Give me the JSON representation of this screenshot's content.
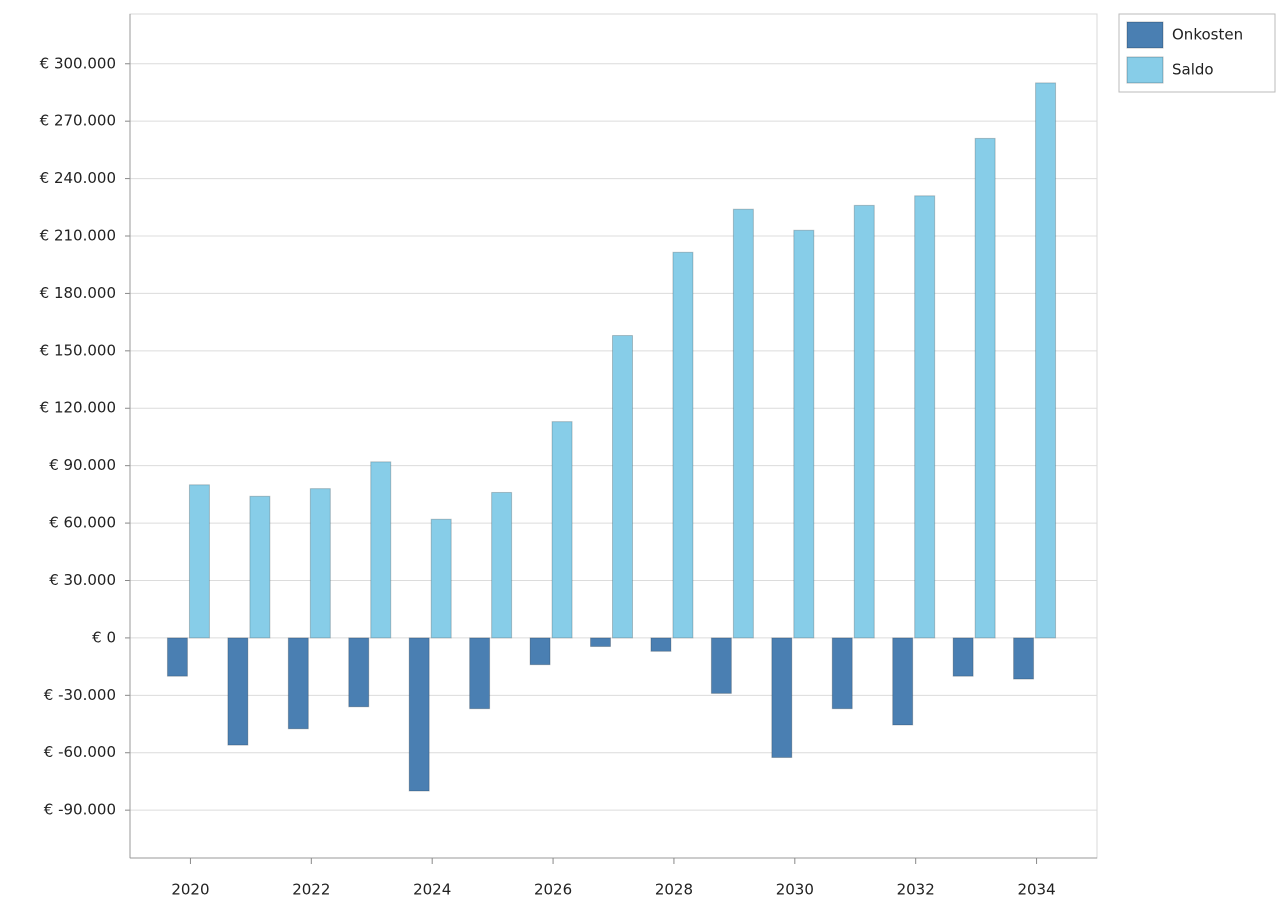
{
  "chart_data": {
    "type": "bar",
    "x": [
      2020,
      2021,
      2022,
      2023,
      2024,
      2025,
      2026,
      2027,
      2028,
      2029,
      2030,
      2031,
      2032,
      2033,
      2034
    ],
    "xlim": [
      2019,
      2035
    ],
    "xticks": [
      2020,
      2022,
      2024,
      2026,
      2028,
      2030,
      2032,
      2034
    ],
    "ylim": [
      -115000,
      326000
    ],
    "yticks": [
      {
        "value": -90000,
        "label": "€ -90.000"
      },
      {
        "value": -60000,
        "label": "€ -60.000"
      },
      {
        "value": -30000,
        "label": "€ -30.000"
      },
      {
        "value": 0,
        "label": "€ 0"
      },
      {
        "value": 30000,
        "label": "€ 30.000"
      },
      {
        "value": 60000,
        "label": "€ 60.000"
      },
      {
        "value": 90000,
        "label": "€ 90.000"
      },
      {
        "value": 120000,
        "label": "€ 120.000"
      },
      {
        "value": 150000,
        "label": "€ 150.000"
      },
      {
        "value": 180000,
        "label": "€ 180.000"
      },
      {
        "value": 210000,
        "label": "€ 210.000"
      },
      {
        "value": 240000,
        "label": "€ 240.000"
      },
      {
        "value": 270000,
        "label": "€ 270.000"
      },
      {
        "value": 300000,
        "label": "€ 300.000"
      }
    ],
    "grid": true,
    "legend": "outside-top-right",
    "series": [
      {
        "name": "Onkosten",
        "color": "#4a7fb2",
        "values": [
          -20000,
          -56000,
          -47500,
          -36000,
          -80000,
          -37000,
          -14000,
          -4500,
          -7000,
          -29000,
          -62500,
          -37000,
          -45500,
          -20000,
          -21500
        ]
      },
      {
        "name": "Saldo",
        "color": "#87cde8",
        "values": [
          80000,
          74000,
          78000,
          92000,
          62000,
          76000,
          113000,
          158000,
          201500,
          224000,
          213000,
          226000,
          231000,
          261000,
          290000
        ]
      }
    ]
  }
}
